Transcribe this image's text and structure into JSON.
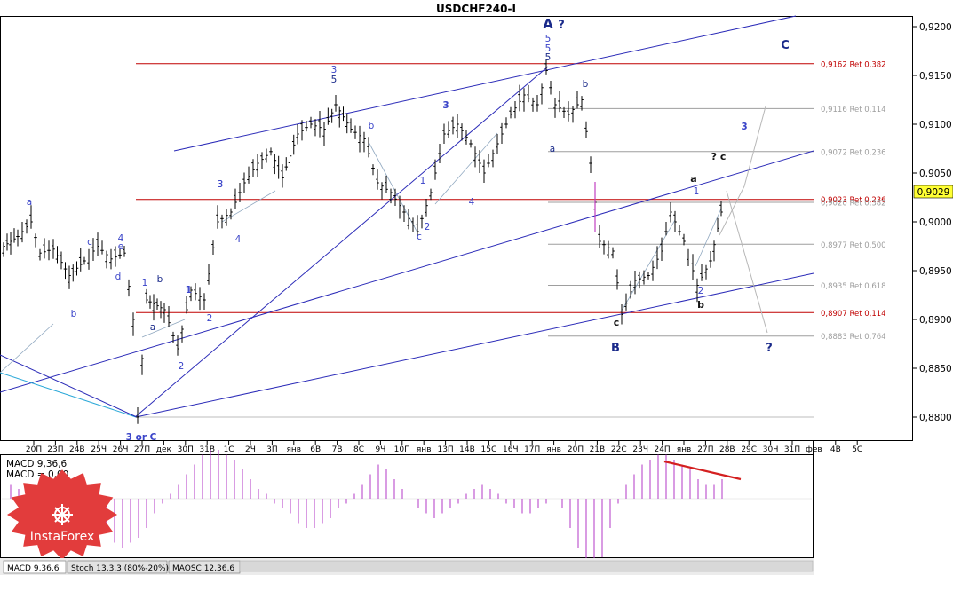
{
  "window": {
    "title": "USDCHF240-I"
  },
  "chart_data": {
    "type": "candlestick",
    "symbol": "USDCHF240-I",
    "current_price": "0,9029",
    "y_ticks": [
      "0,9200",
      "0,9150",
      "0,9100",
      "0,9050",
      "0,9000",
      "0,8950",
      "0,8900",
      "0,8850",
      "0,8800"
    ],
    "x_ticks": [
      "20П",
      "23П",
      "24В",
      "25Ч",
      "26Ч",
      "27П",
      "дек",
      "30П",
      "31В",
      "1С",
      "2Ч",
      "3П",
      "янв",
      "6В",
      "7В",
      "8С",
      "9Ч",
      "10П",
      "янв",
      "13П",
      "14В",
      "15С",
      "16Ч",
      "17П",
      "янв",
      "20П",
      "21В",
      "22С",
      "23Ч",
      "24П",
      "янв",
      "27П",
      "28В",
      "29С",
      "30Ч",
      "31П",
      "фев",
      "4В",
      "5С"
    ],
    "fib_levels": [
      {
        "label": "0,9162 Ret 0,382",
        "value": 0.9162,
        "color": "#c00000"
      },
      {
        "label": "0,9116 Ret 0,114",
        "value": 0.9116,
        "color": "#9e9e9e"
      },
      {
        "label": "0,9072 Ret 0,236",
        "value": 0.9072,
        "color": "#9e9e9e"
      },
      {
        "label": "0,9023 Ret 0,236",
        "value": 0.9023,
        "color": "#c00000"
      },
      {
        "label": "0,9020 Ret 0,382",
        "value": 0.902,
        "color": "#9e9e9e"
      },
      {
        "label": "0,8977 Ret 0,500",
        "value": 0.8977,
        "color": "#9e9e9e"
      },
      {
        "label": "0,8935 Ret 0,618",
        "value": 0.8935,
        "color": "#9e9e9e"
      },
      {
        "label": "0,8907 Ret 0,114",
        "value": 0.8907,
        "color": "#c00000"
      },
      {
        "label": "0,8883 Ret 0,764",
        "value": 0.8883,
        "color": "#9e9e9e"
      }
    ],
    "wave_labels_navy": [
      "A",
      "?",
      "C",
      "B",
      "?"
    ],
    "wave_labels_dark": [
      "? c",
      "a",
      "b",
      "c"
    ],
    "wave_labels_blue": [
      "5",
      "5",
      "3",
      "3 or C",
      "3",
      "4",
      "2",
      "1",
      "4",
      "e",
      "d",
      "c",
      "b",
      "a",
      "b",
      "c",
      "2",
      "1",
      "b",
      "a",
      "3",
      "5",
      "5",
      "3",
      "4",
      "1",
      "2",
      "b",
      "a",
      "1",
      "2",
      "1",
      "3"
    ],
    "indicator": {
      "name": "MACD",
      "label_1": "MACD 9,36,6",
      "label_2": "MACD = 0,00",
      "histogram": [
        0.3,
        0.2,
        0.0,
        -0.2,
        -0.3,
        -0.4,
        -0.5,
        -0.6,
        -0.6,
        -0.5,
        -0.4,
        -0.3,
        -0.5,
        -0.9,
        -1.0,
        -0.9,
        -0.8,
        -0.6,
        -0.3,
        -0.1,
        0.1,
        0.3,
        0.5,
        0.7,
        0.9,
        1.0,
        1.0,
        0.9,
        0.8,
        0.6,
        0.4,
        0.2,
        0.1,
        -0.1,
        -0.2,
        -0.3,
        -0.5,
        -0.6,
        -0.6,
        -0.5,
        -0.4,
        -0.2,
        -0.1,
        0.1,
        0.3,
        0.5,
        0.7,
        0.6,
        0.4,
        0.2,
        0.0,
        -0.2,
        -0.3,
        -0.4,
        -0.3,
        -0.2,
        -0.1,
        0.1,
        0.2,
        0.3,
        0.2,
        0.1,
        -0.1,
        -0.2,
        -0.3,
        -0.3,
        -0.2,
        -0.1,
        0.0,
        -0.2,
        -0.6,
        -1.0,
        -1.4,
        -1.6,
        -1.2,
        -0.6,
        -0.1,
        0.3,
        0.5,
        0.7,
        0.8,
        0.9,
        0.9,
        0.8,
        0.7,
        0.6,
        0.4,
        0.3,
        0.3,
        0.4
      ]
    },
    "tabs": [
      "MACD 9,36,6",
      "Stoch 13,3,3 (80%-20%)",
      "MAOSC 12,36,6"
    ],
    "logo": "InstaForex"
  },
  "colors": {
    "axis": "#000000",
    "candle": "#000000",
    "fib_red": "#c00000",
    "fib_gray": "#9e9e9e",
    "channel": "#2b2bb8",
    "wave_blue": "#3a44c9",
    "navy": "#1a2a8a",
    "histogram": "#b33ac7",
    "trend_red": "#d42020",
    "logo_red": "#e23c3c"
  }
}
